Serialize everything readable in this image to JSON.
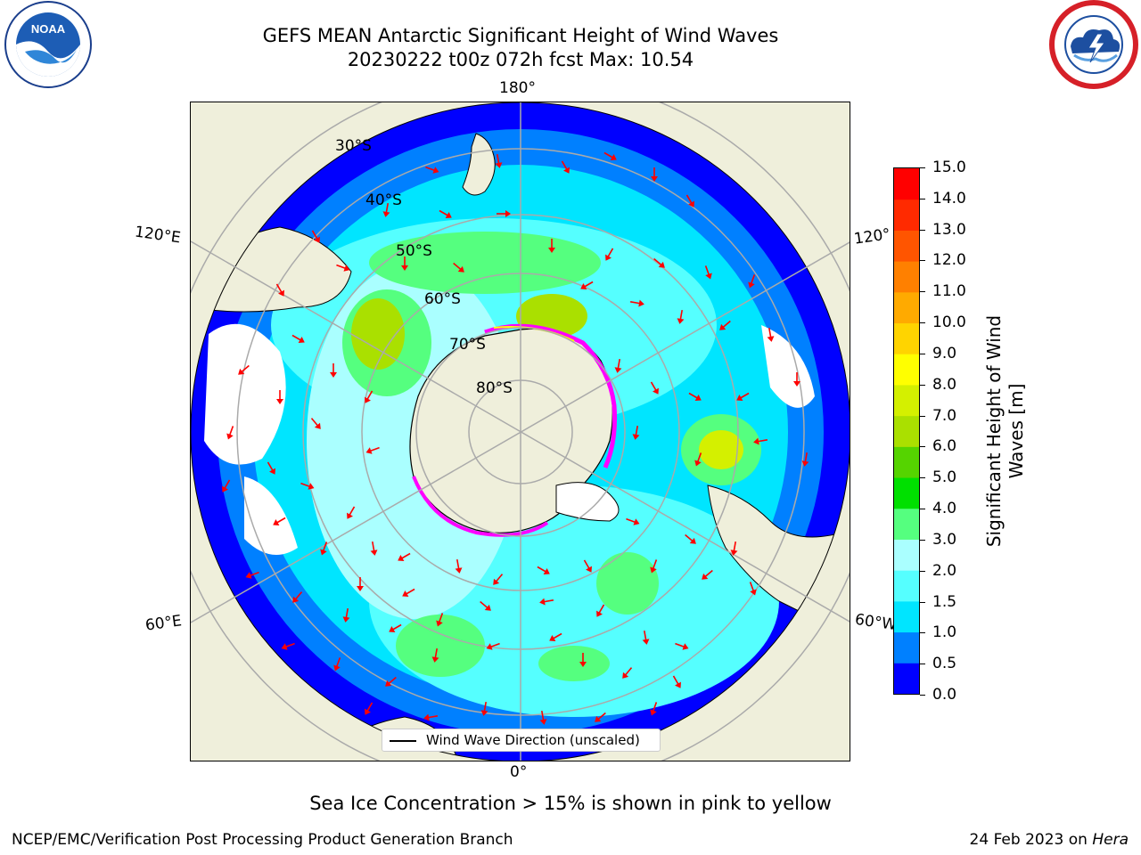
{
  "title": {
    "line1": "GEFS MEAN Antarctic Significant Height of Wind Waves",
    "line2": "20230222 t00z 072h fcst   Max: 10.54"
  },
  "logos": {
    "left": "noaa-logo",
    "right": "national-weather-service-logo"
  },
  "map": {
    "projection": "south-polar-stereographic",
    "lon_labels": {
      "top": "180°",
      "bottom": "0°",
      "upper_left": "120°E",
      "upper_right": "120°",
      "lower_left": "60°E",
      "lower_right": "60°W"
    },
    "lat_labels": [
      "30°S",
      "40°S",
      "50°S",
      "60°S",
      "70°S",
      "80°S"
    ],
    "land_color": "#efefdb",
    "arrow_color": "#ff0000",
    "ice_colors": [
      "#ff00ff",
      "#ffff00"
    ]
  },
  "legend": {
    "label": "Wind Wave Direction (unscaled)"
  },
  "colorbar": {
    "label_line1": "Significant Height of Wind",
    "label_line2": "Waves [m]",
    "ticks": [
      "0.0",
      "0.5",
      "1.0",
      "1.5",
      "2.0",
      "3.0",
      "4.0",
      "5.0",
      "6.0",
      "7.0",
      "8.0",
      "9.0",
      "10.0",
      "11.0",
      "12.0",
      "13.0",
      "14.0",
      "15.0"
    ],
    "colors": [
      "#0000ff",
      "#0080ff",
      "#00e5ff",
      "#55ffff",
      "#aaffff",
      "#55ff7f",
      "#00e000",
      "#55d400",
      "#aae000",
      "#d4f000",
      "#ffff00",
      "#ffd400",
      "#ffaa00",
      "#ff8000",
      "#ff5500",
      "#ff2a00",
      "#ff0000"
    ]
  },
  "subtitle": "Sea Ice Concentration > 15% is shown in pink to yellow",
  "footer": {
    "left": "NCEP/EMC/Verification Post Processing Product Generation Branch",
    "right_date": "24 Feb 2023 on ",
    "right_host": "Hera"
  }
}
